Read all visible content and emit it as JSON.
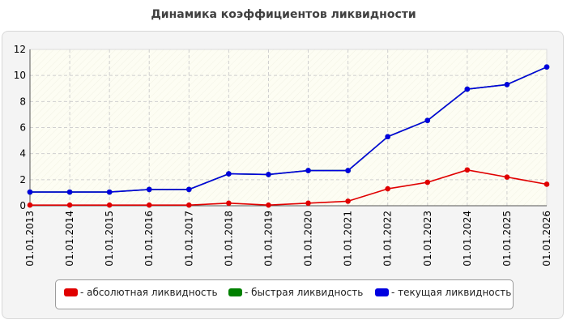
{
  "title": "Динамика коэффициентов ликвидности",
  "chart_data": {
    "type": "line",
    "categories": [
      "01.01.2013",
      "01.01.2014",
      "01.01.2015",
      "01.01.2016",
      "01.01.2017",
      "01.01.2018",
      "01.01.2019",
      "01.01.2020",
      "01.01.2021",
      "01.01.2022",
      "01.01.2023",
      "01.01.2024",
      "01.01.2025",
      "01.01.2026"
    ],
    "ylim": [
      0,
      12
    ],
    "yticks": [
      "0",
      "2",
      "4",
      "6",
      "8",
      "10",
      "12"
    ],
    "grid": true,
    "legend_position": "bottom",
    "series": [
      {
        "name": "- абсолютная ликвидность",
        "color": "#e00000",
        "values": [
          0.05,
          0.05,
          0.05,
          0.05,
          0.05,
          0.2,
          0.05,
          0.2,
          0.35,
          1.3,
          1.8,
          2.75,
          2.2,
          1.65
        ]
      },
      {
        "name": "- быстрая ликвидность",
        "color": "#008000",
        "values": [
          1.05,
          1.05,
          1.05,
          1.25,
          1.25,
          2.45,
          2.4,
          2.7,
          2.7,
          5.3,
          6.55,
          8.95,
          9.3,
          10.65
        ]
      },
      {
        "name": "- текущая ликвидность",
        "color": "#0000e0",
        "values": [
          1.05,
          1.05,
          1.05,
          1.25,
          1.25,
          2.45,
          2.4,
          2.7,
          2.7,
          5.3,
          6.55,
          8.95,
          9.3,
          10.65
        ]
      }
    ]
  }
}
